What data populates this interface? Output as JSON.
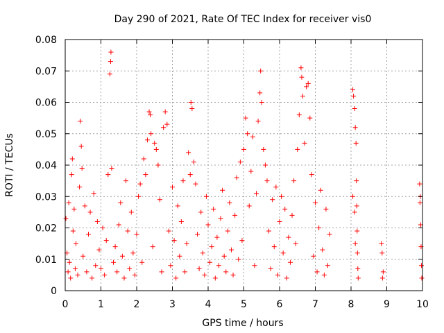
{
  "chart_data": {
    "type": "scatter",
    "title": "Day 290 of 2021, Rate Of TEC Index for receiver vis0",
    "xlabel": "GPS time / hours",
    "ylabel": "ROTI / TECUs",
    "xlim": [
      0,
      10
    ],
    "ylim": [
      0,
      0.08
    ],
    "x_ticks": [
      "0",
      "1",
      "2",
      "3",
      "4",
      "5",
      "6",
      "7",
      "8",
      "9",
      "10"
    ],
    "y_ticks": [
      "0",
      "0.01",
      "0.02",
      "0.03",
      "0.04",
      "0.05",
      "0.06",
      "0.07",
      "0.08"
    ],
    "grid": true,
    "marker": "+",
    "color": "#ff0000",
    "series": [
      {
        "name": "ROTI",
        "points": [
          [
            0.02,
            0.023
          ],
          [
            0.05,
            0.012
          ],
          [
            0.08,
            0.006
          ],
          [
            0.1,
            0.028
          ],
          [
            0.12,
            0.009
          ],
          [
            0.15,
            0.004
          ],
          [
            0.18,
            0.037
          ],
          [
            0.2,
            0.042
          ],
          [
            0.22,
            0.019
          ],
          [
            0.25,
            0.026
          ],
          [
            0.28,
            0.007
          ],
          [
            0.3,
            0.015
          ],
          [
            0.35,
            0.005
          ],
          [
            0.4,
            0.033
          ],
          [
            0.42,
            0.054
          ],
          [
            0.45,
            0.046
          ],
          [
            0.47,
            0.039
          ],
          [
            0.5,
            0.011
          ],
          [
            0.55,
            0.027
          ],
          [
            0.6,
            0.006
          ],
          [
            0.65,
            0.018
          ],
          [
            0.7,
            0.025
          ],
          [
            0.75,
            0.004
          ],
          [
            0.8,
            0.031
          ],
          [
            0.85,
            0.008
          ],
          [
            0.9,
            0.022
          ],
          [
            0.95,
            0.013
          ],
          [
            1.0,
            0.007
          ],
          [
            1.05,
            0.02
          ],
          [
            1.1,
            0.005
          ],
          [
            1.15,
            0.016
          ],
          [
            1.2,
            0.037
          ],
          [
            1.25,
            0.069
          ],
          [
            1.27,
            0.073
          ],
          [
            1.28,
            0.076
          ],
          [
            1.3,
            0.039
          ],
          [
            1.35,
            0.009
          ],
          [
            1.4,
            0.014
          ],
          [
            1.45,
            0.006
          ],
          [
            1.5,
            0.021
          ],
          [
            1.55,
            0.028
          ],
          [
            1.6,
            0.011
          ],
          [
            1.65,
            0.004
          ],
          [
            1.7,
            0.035
          ],
          [
            1.75,
            0.019
          ],
          [
            1.8,
            0.007
          ],
          [
            1.85,
            0.025
          ],
          [
            1.9,
            0.012
          ],
          [
            1.95,
            0.005
          ],
          [
            2.0,
            0.018
          ],
          [
            2.05,
            0.03
          ],
          [
            2.1,
            0.034
          ],
          [
            2.15,
            0.009
          ],
          [
            2.2,
            0.042
          ],
          [
            2.25,
            0.037
          ],
          [
            2.3,
            0.048
          ],
          [
            2.35,
            0.057
          ],
          [
            2.38,
            0.056
          ],
          [
            2.4,
            0.05
          ],
          [
            2.45,
            0.014
          ],
          [
            2.5,
            0.047
          ],
          [
            2.55,
            0.045
          ],
          [
            2.6,
            0.04
          ],
          [
            2.65,
            0.029
          ],
          [
            2.7,
            0.006
          ],
          [
            2.75,
            0.052
          ],
          [
            2.8,
            0.057
          ],
          [
            2.85,
            0.053
          ],
          [
            2.9,
            0.019
          ],
          [
            2.95,
            0.008
          ],
          [
            3.0,
            0.033
          ],
          [
            3.05,
            0.016
          ],
          [
            3.1,
            0.004
          ],
          [
            3.15,
            0.027
          ],
          [
            3.2,
            0.011
          ],
          [
            3.25,
            0.022
          ],
          [
            3.3,
            0.035
          ],
          [
            3.35,
            0.006
          ],
          [
            3.4,
            0.015
          ],
          [
            3.45,
            0.044
          ],
          [
            3.5,
            0.037
          ],
          [
            3.52,
            0.06
          ],
          [
            3.55,
            0.058
          ],
          [
            3.6,
            0.041
          ],
          [
            3.65,
            0.034
          ],
          [
            3.7,
            0.018
          ],
          [
            3.75,
            0.007
          ],
          [
            3.8,
            0.025
          ],
          [
            3.85,
            0.012
          ],
          [
            3.9,
            0.005
          ],
          [
            3.95,
            0.03
          ],
          [
            4.0,
            0.021
          ],
          [
            4.05,
            0.009
          ],
          [
            4.1,
            0.014
          ],
          [
            4.15,
            0.026
          ],
          [
            4.2,
            0.004
          ],
          [
            4.25,
            0.017
          ],
          [
            4.3,
            0.008
          ],
          [
            4.35,
            0.023
          ],
          [
            4.4,
            0.032
          ],
          [
            4.45,
            0.011
          ],
          [
            4.5,
            0.006
          ],
          [
            4.55,
            0.019
          ],
          [
            4.6,
            0.028
          ],
          [
            4.65,
            0.013
          ],
          [
            4.7,
            0.005
          ],
          [
            4.75,
            0.024
          ],
          [
            4.8,
            0.036
          ],
          [
            4.85,
            0.01
          ],
          [
            4.9,
            0.041
          ],
          [
            4.95,
            0.016
          ],
          [
            5.0,
            0.045
          ],
          [
            5.05,
            0.055
          ],
          [
            5.1,
            0.05
          ],
          [
            5.15,
            0.027
          ],
          [
            5.2,
            0.038
          ],
          [
            5.25,
            0.049
          ],
          [
            5.3,
            0.008
          ],
          [
            5.35,
            0.031
          ],
          [
            5.4,
            0.054
          ],
          [
            5.45,
            0.063
          ],
          [
            5.47,
            0.07
          ],
          [
            5.5,
            0.06
          ],
          [
            5.55,
            0.045
          ],
          [
            5.6,
            0.04
          ],
          [
            5.65,
            0.035
          ],
          [
            5.7,
            0.019
          ],
          [
            5.75,
            0.007
          ],
          [
            5.8,
            0.029
          ],
          [
            5.85,
            0.014
          ],
          [
            5.9,
            0.033
          ],
          [
            5.95,
            0.005
          ],
          [
            6.0,
            0.022
          ],
          [
            6.05,
            0.03
          ],
          [
            6.1,
            0.012
          ],
          [
            6.15,
            0.026
          ],
          [
            6.2,
            0.004
          ],
          [
            6.25,
            0.017
          ],
          [
            6.3,
            0.009
          ],
          [
            6.35,
            0.024
          ],
          [
            6.4,
            0.035
          ],
          [
            6.45,
            0.015
          ],
          [
            6.5,
            0.045
          ],
          [
            6.55,
            0.056
          ],
          [
            6.6,
            0.071
          ],
          [
            6.62,
            0.068
          ],
          [
            6.65,
            0.062
          ],
          [
            6.7,
            0.047
          ],
          [
            6.75,
            0.065
          ],
          [
            6.8,
            0.066
          ],
          [
            6.85,
            0.055
          ],
          [
            6.9,
            0.037
          ],
          [
            6.95,
            0.011
          ],
          [
            7.0,
            0.028
          ],
          [
            7.05,
            0.006
          ],
          [
            7.1,
            0.02
          ],
          [
            7.15,
            0.032
          ],
          [
            7.2,
            0.013
          ],
          [
            7.25,
            0.005
          ],
          [
            7.3,
            0.026
          ],
          [
            7.35,
            0.008
          ],
          [
            7.4,
            0.018
          ],
          [
            8.05,
            0.064
          ],
          [
            8.07,
            0.062
          ],
          [
            8.1,
            0.058
          ],
          [
            8.12,
            0.052
          ],
          [
            8.14,
            0.047
          ],
          [
            8.15,
            0.035
          ],
          [
            8.16,
            0.027
          ],
          [
            8.17,
            0.019
          ],
          [
            8.18,
            0.012
          ],
          [
            8.19,
            0.007
          ],
          [
            8.2,
            0.004
          ],
          [
            8.05,
            0.03
          ],
          [
            8.1,
            0.025
          ],
          [
            8.12,
            0.015
          ],
          [
            8.85,
            0.015
          ],
          [
            8.87,
            0.012
          ],
          [
            8.9,
            0.006
          ],
          [
            8.88,
            0.004
          ],
          [
            9.92,
            0.034
          ],
          [
            9.93,
            0.028
          ],
          [
            9.95,
            0.021
          ],
          [
            9.96,
            0.014
          ],
          [
            9.97,
            0.008
          ],
          [
            9.98,
            0.004
          ],
          [
            9.94,
            0.03
          ]
        ]
      }
    ]
  }
}
